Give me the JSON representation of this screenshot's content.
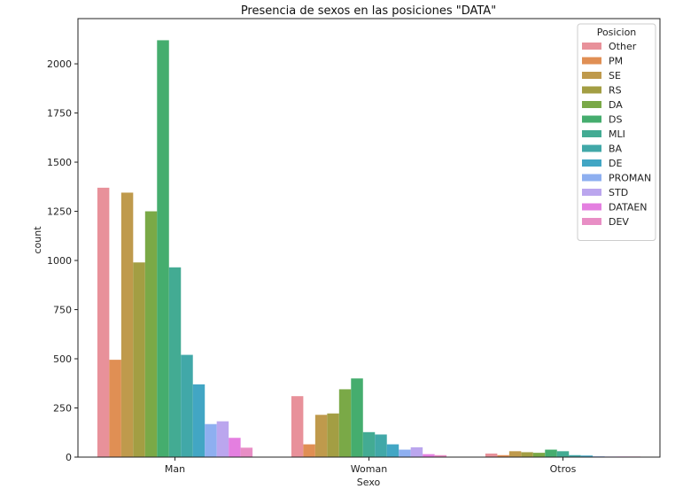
{
  "chart_data": {
    "type": "bar",
    "title": "Presencia de sexos en las posiciones \"DATA\"",
    "xlabel": "Sexo",
    "ylabel": "count",
    "categories": [
      "Man",
      "Woman",
      "Otros"
    ],
    "ylim": [
      0,
      2230
    ],
    "yticks": [
      0,
      250,
      500,
      750,
      1000,
      1250,
      1500,
      1750,
      2000
    ],
    "grid": false,
    "legend": {
      "title": "Posicion",
      "placement": "top-right"
    },
    "series": [
      {
        "name": "Other",
        "color": "#e8919a",
        "values": [
          1370,
          310,
          18
        ]
      },
      {
        "name": "PM",
        "color": "#e08f54",
        "values": [
          495,
          65,
          10
        ]
      },
      {
        "name": "SE",
        "color": "#bf9a4c",
        "values": [
          1345,
          215,
          30
        ]
      },
      {
        "name": "RS",
        "color": "#a39e43",
        "values": [
          990,
          222,
          25
        ]
      },
      {
        "name": "DA",
        "color": "#7aa947",
        "values": [
          1250,
          345,
          22
        ]
      },
      {
        "name": "DS",
        "color": "#45ad6e",
        "values": [
          2120,
          400,
          38
        ]
      },
      {
        "name": "MLI",
        "color": "#43ab93",
        "values": [
          965,
          127,
          30
        ]
      },
      {
        "name": "BA",
        "color": "#41a8a8",
        "values": [
          520,
          115,
          10
        ]
      },
      {
        "name": "DE",
        "color": "#42a6c4",
        "values": [
          370,
          65,
          8
        ]
      },
      {
        "name": "PROMAN",
        "color": "#8eaff0",
        "values": [
          168,
          38,
          4
        ]
      },
      {
        "name": "STD",
        "color": "#bba6ee",
        "values": [
          182,
          50,
          3
        ]
      },
      {
        "name": "DATAEN",
        "color": "#e47fe0",
        "values": [
          98,
          15,
          3
        ]
      },
      {
        "name": "DEV",
        "color": "#e88ec5",
        "values": [
          48,
          10,
          3
        ]
      }
    ]
  }
}
